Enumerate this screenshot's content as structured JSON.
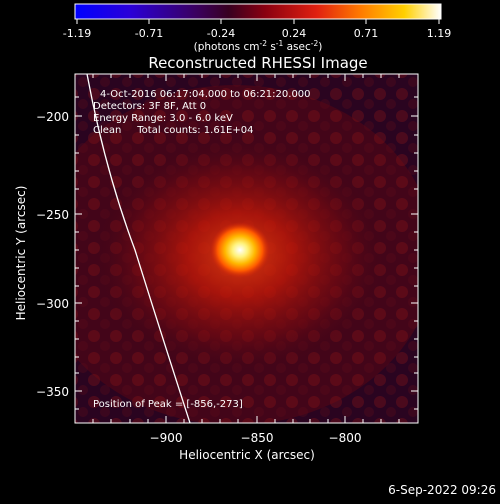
{
  "colorbar": {
    "ticks": [
      "-1.19",
      "-0.71",
      "-0.24",
      "0.24",
      "0.71",
      "1.19"
    ],
    "units_prefix": "(photons cm",
    "units_exp1": "-2",
    "units_mid": " s",
    "units_exp2": "-1",
    "units_mid2": " asec",
    "units_exp3": "-2",
    "units_suffix": ")",
    "colormap": "rhessi-red-yellow"
  },
  "plot": {
    "title": "Reconstructed RHESSI Image",
    "xlabel": "Heliocentric X (arcsec)",
    "ylabel": "Heliocentric Y (arcsec)",
    "x_ticks": [
      "−900",
      "−850",
      "−800"
    ],
    "y_ticks": [
      "−200",
      "−250",
      "−300",
      "−350"
    ],
    "annotations": {
      "time_range": "4-Oct-2016 06:17:04.000 to 06:21:20.000",
      "detectors": "Detectors: 3F 8F, Att 0",
      "energy": "Energy Range: 3.0 - 6.0 keV",
      "clean": "Clean     Total counts: 1.61E+04",
      "peak": "Position of Peak = [-856,-273]"
    },
    "peak_value": [
      -856,
      -273
    ],
    "x_range": [
      -950,
      -752
    ],
    "y_range": [
      -368,
      -172
    ]
  },
  "footer": {
    "timestamp": "6-Sep-2022 09:26"
  }
}
